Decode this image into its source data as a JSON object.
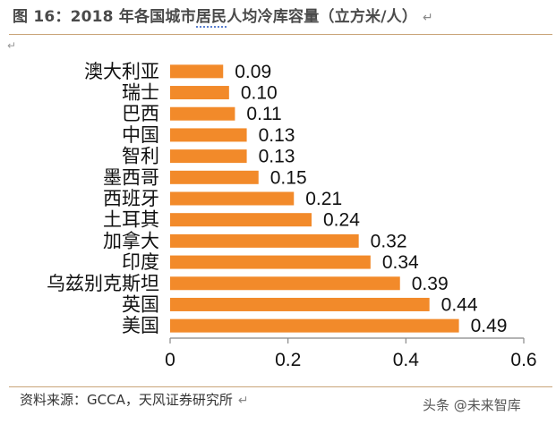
{
  "figure": {
    "title_prefix": "图 16：2018 年各国城市",
    "title_underlined": "居民",
    "title_suffix": "人均冷库容量（立方米/人）",
    "return_mark": "↵",
    "source": "资料来源：GCCA，天风证券研究所",
    "watermark": "头条 @未来智库"
  },
  "chart_data": {
    "type": "bar",
    "orientation": "horizontal",
    "categories": [
      "澳大利亚",
      "瑞士",
      "巴西",
      "中国",
      "智利",
      "墨西哥",
      "西班牙",
      "土耳其",
      "加拿大",
      "印度",
      "乌兹别克斯坦",
      "英国",
      "美国"
    ],
    "values": [
      0.09,
      0.1,
      0.11,
      0.13,
      0.13,
      0.15,
      0.21,
      0.24,
      0.32,
      0.34,
      0.39,
      0.44,
      0.49
    ],
    "data_labels": [
      "0.09",
      "0.10",
      "0.11",
      "0.13",
      "0.13",
      "0.15",
      "0.21",
      "0.24",
      "0.32",
      "0.34",
      "0.39",
      "0.44",
      "0.49"
    ],
    "xlim": [
      0,
      0.6
    ],
    "xticks": [
      0,
      0.2,
      0.4,
      0.6
    ],
    "xtick_labels": [
      "0",
      "0.2",
      "0.4",
      "0.6"
    ],
    "title": "",
    "xlabel": "",
    "ylabel": "",
    "grid": false,
    "legend": "none",
    "bar_color": "#f28a2a"
  }
}
